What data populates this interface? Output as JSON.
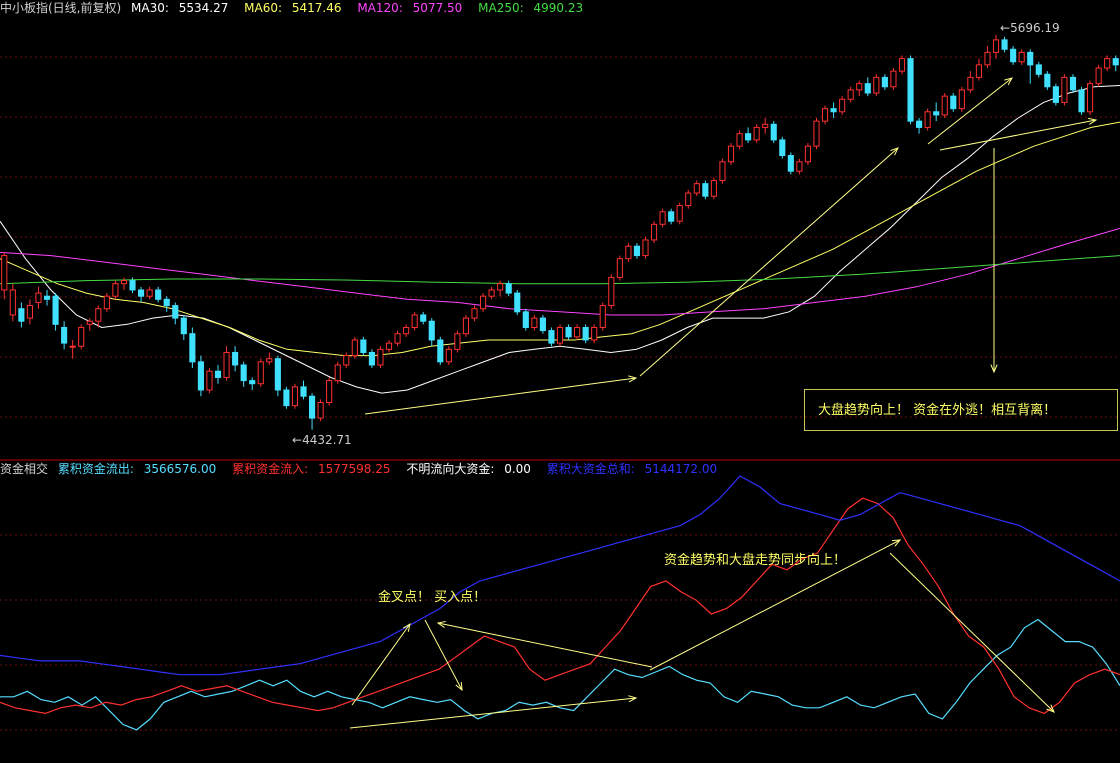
{
  "upper_header": {
    "title": "中小板指(日线,前复权)",
    "ma30": {
      "label": "MA30:",
      "value": "5534.27",
      "color": "#ffffff"
    },
    "ma60": {
      "label": "MA60:",
      "value": "5417.46",
      "color": "#ffff66"
    },
    "ma120": {
      "label": "MA120:",
      "value": "5077.50",
      "color": "#ff44ff"
    },
    "ma250": {
      "label": "MA250:",
      "value": "4990.23",
      "color": "#44dd44"
    }
  },
  "lower_header": {
    "name": "资金相交",
    "outflow": {
      "label": "累积资金流出:",
      "value": "3566576.00",
      "color": "#55ddff"
    },
    "inflow": {
      "label": "累积资金流入:",
      "value": "1577598.25",
      "color": "#ff3030"
    },
    "unknown": {
      "label": "不明流向大资金:",
      "value": "0.00",
      "color": "#ffffff"
    },
    "total": {
      "label": "累积大资金总和:",
      "value": "5144172.00",
      "color": "#3030ff"
    }
  },
  "annotations": {
    "high_label": "5696.19",
    "low_label": "4432.71",
    "divergence_note": "大盘趋势向上！ 资金在外逃！相互背离！",
    "golden_cross_note": "金叉点！ 买入点！",
    "sync_note": "资金趋势和大盘走势同步向上！"
  },
  "chart_data": [
    {
      "type": "candlestick",
      "title": "中小板指(日线,前复权)",
      "y_range": [
        4400,
        5750
      ],
      "annotated_high": 5696.19,
      "annotated_low": 4432.71,
      "candles": [
        [
          4880,
          4990,
          4850,
          5000
        ],
        [
          4800,
          4880,
          4780,
          4900
        ],
        [
          4820,
          4780,
          4760,
          4840
        ],
        [
          4790,
          4830,
          4770,
          4850
        ],
        [
          4840,
          4870,
          4820,
          4890
        ],
        [
          4860,
          4850,
          4830,
          4880
        ],
        [
          4860,
          4770,
          4750,
          4870
        ],
        [
          4760,
          4710,
          4690,
          4780
        ],
        [
          4700,
          4700,
          4660,
          4720
        ],
        [
          4700,
          4760,
          4690,
          4770
        ],
        [
          4770,
          4780,
          4750,
          4790
        ],
        [
          4780,
          4820,
          4760,
          4830
        ],
        [
          4820,
          4860,
          4810,
          4870
        ],
        [
          4860,
          4900,
          4850,
          4910
        ],
        [
          4900,
          4910,
          4880,
          4920
        ],
        [
          4910,
          4880,
          4870,
          4920
        ],
        [
          4880,
          4860,
          4840,
          4890
        ],
        [
          4860,
          4880,
          4850,
          4890
        ],
        [
          4880,
          4850,
          4840,
          4890
        ],
        [
          4850,
          4830,
          4810,
          4860
        ],
        [
          4830,
          4790,
          4770,
          4840
        ],
        [
          4790,
          4740,
          4720,
          4800
        ],
        [
          4740,
          4650,
          4630,
          4760
        ],
        [
          4650,
          4560,
          4540,
          4670
        ],
        [
          4560,
          4620,
          4550,
          4630
        ],
        [
          4620,
          4600,
          4580,
          4640
        ],
        [
          4600,
          4680,
          4590,
          4700
        ],
        [
          4680,
          4640,
          4620,
          4700
        ],
        [
          4640,
          4590,
          4570,
          4650
        ],
        [
          4590,
          4580,
          4560,
          4600
        ],
        [
          4580,
          4650,
          4570,
          4660
        ],
        [
          4650,
          4660,
          4640,
          4680
        ],
        [
          4660,
          4560,
          4540,
          4670
        ],
        [
          4560,
          4510,
          4500,
          4570
        ],
        [
          4510,
          4570,
          4500,
          4580
        ],
        [
          4570,
          4540,
          4530,
          4590
        ],
        [
          4540,
          4470,
          4433,
          4550
        ],
        [
          4470,
          4520,
          4460,
          4530
        ],
        [
          4520,
          4590,
          4510,
          4600
        ],
        [
          4590,
          4640,
          4580,
          4650
        ],
        [
          4640,
          4670,
          4630,
          4680
        ],
        [
          4670,
          4720,
          4660,
          4730
        ],
        [
          4720,
          4680,
          4670,
          4730
        ],
        [
          4680,
          4640,
          4630,
          4690
        ],
        [
          4640,
          4690,
          4630,
          4700
        ],
        [
          4690,
          4710,
          4680,
          4720
        ],
        [
          4710,
          4740,
          4700,
          4750
        ],
        [
          4740,
          4760,
          4730,
          4770
        ],
        [
          4760,
          4800,
          4750,
          4810
        ],
        [
          4800,
          4780,
          4770,
          4810
        ],
        [
          4780,
          4720,
          4700,
          4790
        ],
        [
          4720,
          4650,
          4640,
          4730
        ],
        [
          4650,
          4690,
          4640,
          4700
        ],
        [
          4690,
          4740,
          4680,
          4750
        ],
        [
          4740,
          4790,
          4730,
          4800
        ],
        [
          4790,
          4820,
          4780,
          4830
        ],
        [
          4820,
          4860,
          4810,
          4870
        ],
        [
          4860,
          4880,
          4850,
          4890
        ],
        [
          4880,
          4900,
          4860,
          4910
        ],
        [
          4900,
          4870,
          4860,
          4910
        ],
        [
          4870,
          4810,
          4800,
          4880
        ],
        [
          4810,
          4760,
          4750,
          4820
        ],
        [
          4760,
          4790,
          4750,
          4800
        ],
        [
          4790,
          4750,
          4740,
          4800
        ],
        [
          4750,
          4710,
          4700,
          4760
        ],
        [
          4710,
          4760,
          4700,
          4770
        ],
        [
          4760,
          4730,
          4720,
          4770
        ],
        [
          4730,
          4760,
          4720,
          4770
        ],
        [
          4760,
          4720,
          4710,
          4770
        ],
        [
          4720,
          4760,
          4710,
          4770
        ],
        [
          4760,
          4830,
          4750,
          4840
        ],
        [
          4830,
          4920,
          4820,
          4930
        ],
        [
          4920,
          4980,
          4910,
          4990
        ],
        [
          4980,
          5020,
          4970,
          5030
        ],
        [
          5020,
          4990,
          4980,
          5030
        ],
        [
          4990,
          5040,
          4980,
          5050
        ],
        [
          5040,
          5090,
          5030,
          5100
        ],
        [
          5090,
          5130,
          5080,
          5140
        ],
        [
          5130,
          5100,
          5090,
          5140
        ],
        [
          5100,
          5150,
          5090,
          5160
        ],
        [
          5150,
          5190,
          5140,
          5200
        ],
        [
          5190,
          5220,
          5180,
          5230
        ],
        [
          5220,
          5180,
          5170,
          5230
        ],
        [
          5180,
          5230,
          5170,
          5240
        ],
        [
          5230,
          5290,
          5220,
          5300
        ],
        [
          5290,
          5340,
          5280,
          5350
        ],
        [
          5340,
          5380,
          5330,
          5390
        ],
        [
          5380,
          5360,
          5350,
          5400
        ],
        [
          5360,
          5400,
          5350,
          5410
        ],
        [
          5400,
          5410,
          5380,
          5430
        ],
        [
          5410,
          5360,
          5350,
          5420
        ],
        [
          5360,
          5310,
          5300,
          5370
        ],
        [
          5310,
          5260,
          5250,
          5320
        ],
        [
          5260,
          5290,
          5250,
          5300
        ],
        [
          5290,
          5340,
          5280,
          5350
        ],
        [
          5340,
          5420,
          5330,
          5430
        ],
        [
          5420,
          5460,
          5410,
          5470
        ],
        [
          5460,
          5450,
          5430,
          5480
        ],
        [
          5450,
          5490,
          5440,
          5500
        ],
        [
          5490,
          5520,
          5480,
          5530
        ],
        [
          5520,
          5540,
          5500,
          5550
        ],
        [
          5540,
          5510,
          5500,
          5560
        ],
        [
          5510,
          5560,
          5500,
          5570
        ],
        [
          5560,
          5530,
          5520,
          5570
        ],
        [
          5530,
          5580,
          5520,
          5590
        ],
        [
          5580,
          5620,
          5570,
          5630
        ],
        [
          5620,
          5420,
          5410,
          5630
        ],
        [
          5420,
          5400,
          5380,
          5430
        ],
        [
          5400,
          5450,
          5390,
          5460
        ],
        [
          5450,
          5440,
          5420,
          5480
        ],
        [
          5440,
          5500,
          5430,
          5510
        ],
        [
          5500,
          5460,
          5450,
          5510
        ],
        [
          5460,
          5520,
          5450,
          5530
        ],
        [
          5520,
          5560,
          5510,
          5580
        ],
        [
          5560,
          5600,
          5550,
          5620
        ],
        [
          5600,
          5640,
          5590,
          5660
        ],
        [
          5640,
          5680,
          5620,
          5696
        ],
        [
          5680,
          5650,
          5640,
          5690
        ],
        [
          5650,
          5610,
          5600,
          5660
        ],
        [
          5610,
          5640,
          5600,
          5650
        ],
        [
          5640,
          5600,
          5540,
          5650
        ],
        [
          5600,
          5570,
          5560,
          5610
        ],
        [
          5570,
          5530,
          5520,
          5580
        ],
        [
          5530,
          5480,
          5470,
          5540
        ],
        [
          5480,
          5560,
          5470,
          5570
        ],
        [
          5560,
          5520,
          5510,
          5570
        ],
        [
          5520,
          5450,
          5440,
          5530
        ],
        [
          5450,
          5540,
          5440,
          5550
        ],
        [
          5540,
          5590,
          5530,
          5600
        ],
        [
          5590,
          5620,
          5580,
          5630
        ],
        [
          5620,
          5600,
          5580,
          5630
        ]
      ],
      "series": [
        {
          "name": "MA30",
          "color": "#ffffff",
          "values": [
            5100,
            4980,
            4880,
            4800,
            4760,
            4770,
            4790,
            4800,
            4790,
            4760,
            4720,
            4680,
            4640,
            4600,
            4570,
            4550,
            4560,
            4590,
            4620,
            4650,
            4680,
            4690,
            4700,
            4690,
            4680,
            4690,
            4720,
            4760,
            4790,
            4790,
            4790,
            4810,
            4860,
            4940,
            5010,
            5080,
            5160,
            5240,
            5300,
            5370,
            5430,
            5480,
            5510,
            5530,
            5534
          ]
        },
        {
          "name": "MA60",
          "color": "#ffff66",
          "values": [
            4980,
            4940,
            4900,
            4870,
            4850,
            4840,
            4820,
            4790,
            4760,
            4720,
            4690,
            4680,
            4670,
            4670,
            4680,
            4700,
            4710,
            4720,
            4720,
            4720,
            4720,
            4730,
            4740,
            4770,
            4810,
            4850,
            4890,
            4930,
            4970,
            5010,
            5060,
            5110,
            5160,
            5210,
            5260,
            5300,
            5340,
            5370,
            5400,
            5417
          ]
        },
        {
          "name": "MA120",
          "color": "#ff44ff",
          "values": [
            5000,
            4990,
            4970,
            4950,
            4930,
            4910,
            4890,
            4870,
            4850,
            4840,
            4820,
            4810,
            4800,
            4800,
            4810,
            4820,
            4840,
            4860,
            4890,
            4930,
            4980,
            5030,
            5077
          ]
        },
        {
          "name": "MA250",
          "color": "#44dd44",
          "values": [
            4900,
            4910,
            4915,
            4915,
            4912,
            4905,
            4900,
            4900,
            4905,
            4915,
            4930,
            4950,
            4970,
            4990
          ]
        }
      ]
    },
    {
      "type": "line",
      "title": "资金相交",
      "y_range": [
        0,
        100
      ],
      "series": [
        {
          "name": "累积资金流出",
          "color": "#55ddff",
          "values": [
            20,
            20,
            22,
            19,
            18,
            20,
            17,
            20,
            15,
            10,
            8,
            12,
            18,
            20,
            22,
            20,
            21,
            22,
            24,
            26,
            24,
            26,
            22,
            20,
            22,
            20,
            19,
            18,
            16,
            18,
            20,
            19,
            18,
            19,
            15,
            12,
            14,
            15,
            18,
            17,
            18,
            16,
            15,
            20,
            25,
            30,
            28,
            27,
            29,
            31,
            28,
            26,
            25,
            20,
            18,
            22,
            21,
            20,
            17,
            16,
            16,
            18,
            20,
            17,
            16,
            18,
            20,
            21,
            14,
            12,
            18,
            25,
            30,
            35,
            38,
            45,
            48,
            44,
            40,
            40,
            38,
            32,
            24
          ]
        },
        {
          "name": "累积资金流入",
          "color": "#ff3030",
          "values": [
            18,
            16,
            15,
            14,
            16,
            17,
            16,
            18,
            17,
            19,
            20,
            22,
            24,
            22,
            23,
            24,
            22,
            20,
            18,
            17,
            16,
            15,
            16,
            18,
            20,
            22,
            24,
            26,
            28,
            30,
            34,
            38,
            42,
            40,
            38,
            30,
            26,
            28,
            30,
            32,
            38,
            44,
            52,
            60,
            62,
            58,
            55,
            50,
            52,
            56,
            62,
            68,
            66,
            70,
            72,
            80,
            88,
            92,
            90,
            85,
            75,
            68,
            60,
            50,
            42,
            38,
            30,
            20,
            16,
            14,
            18,
            25,
            28,
            30,
            28
          ]
        },
        {
          "name": "累积大资金总和",
          "color": "#3030ff",
          "values": [
            35,
            34,
            33,
            33,
            33,
            32,
            31,
            30,
            29,
            28,
            28,
            28,
            29,
            30,
            31,
            32,
            34,
            36,
            38,
            40,
            44,
            48,
            52,
            58,
            62,
            64,
            66,
            68,
            70,
            72,
            74,
            76,
            78,
            80,
            82,
            86,
            92,
            100,
            96,
            90,
            88,
            86,
            84,
            86,
            90,
            94,
            92,
            90,
            88,
            86,
            84,
            82,
            78,
            74,
            70,
            66,
            62
          ]
        }
      ]
    }
  ]
}
